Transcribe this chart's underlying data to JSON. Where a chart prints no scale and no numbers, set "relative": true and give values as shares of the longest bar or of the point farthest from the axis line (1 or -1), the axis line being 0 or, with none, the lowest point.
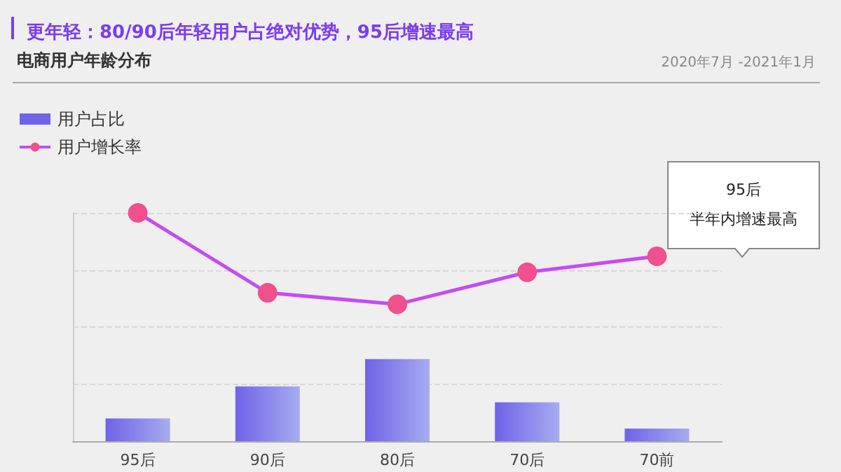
{
  "chart_data": {
    "type": "bar",
    "title": "更年轻：80/90后年轻用户占绝对优势，95后增速最高",
    "subtitle": "电商用户年龄分布",
    "annotations": [
      "2020年7月 -2021年1月",
      "95后",
      "半年内增速最高"
    ],
    "categories": [
      "95后",
      "90后",
      "80后",
      "70后",
      "70前"
    ],
    "relative": true,
    "grid": "y",
    "legend": "top left",
    "series": [
      {
        "name": "用户占比",
        "color": "#6f63e8",
        "values": [
          0.1,
          0.24,
          0.36,
          0.17,
          0.055
        ]
      },
      {
        "name": "用户增长率",
        "type": "line",
        "color": "#c44cf2",
        "marker": "circle",
        "values": [
          1,
          0.65,
          0.6,
          0.74,
          0.81
        ]
      }
    ]
  }
}
